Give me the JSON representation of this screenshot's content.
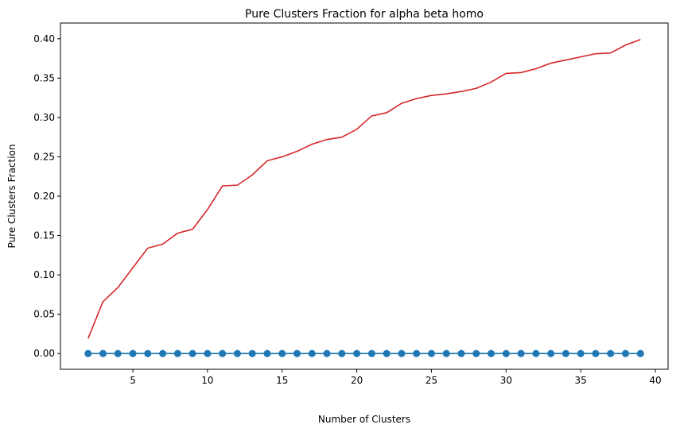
{
  "chart_data": {
    "type": "line",
    "title": "Pure Clusters Fraction for alpha beta homo",
    "xlabel": "Number of Clusters",
    "ylabel": "Pure Clusters Fraction",
    "xlim": [
      0.15,
      40.85
    ],
    "ylim": [
      -0.02,
      0.42
    ],
    "x_ticks": [
      5,
      10,
      15,
      20,
      25,
      30,
      35,
      40
    ],
    "x_tick_labels": [
      "5",
      "10",
      "15",
      "20",
      "25",
      "30",
      "35",
      "40"
    ],
    "y_ticks": [
      0.0,
      0.05,
      0.1,
      0.15,
      0.2,
      0.25,
      0.3,
      0.35,
      0.4
    ],
    "y_tick_labels": [
      "0.00",
      "0.05",
      "0.10",
      "0.15",
      "0.20",
      "0.25",
      "0.30",
      "0.35",
      "0.40"
    ],
    "grid": false,
    "x": [
      2,
      3,
      4,
      5,
      6,
      7,
      8,
      9,
      10,
      11,
      12,
      13,
      14,
      15,
      16,
      17,
      18,
      19,
      20,
      21,
      22,
      23,
      24,
      25,
      26,
      27,
      28,
      29,
      30,
      31,
      32,
      33,
      34,
      35,
      36,
      37,
      38,
      39
    ],
    "series": [
      {
        "color": "#d62728",
        "marker": "none",
        "values": [
          0.019,
          0.066,
          0.084,
          0.109,
          0.134,
          0.139,
          0.153,
          0.158,
          0.183,
          0.213,
          0.214,
          0.227,
          0.245,
          0.25,
          0.257,
          0.266,
          0.272,
          0.275,
          0.285,
          0.302,
          0.306,
          0.318,
          0.324,
          0.328,
          0.33,
          0.333,
          0.337,
          0.345,
          0.356,
          0.357,
          0.362,
          0.369,
          0.373,
          0.377,
          0.381,
          0.382,
          0.392,
          0.399
        ]
      },
      {
        "color": "#2ca02c",
        "marker": "none",
        "values": [
          0,
          0,
          0,
          0,
          0,
          0,
          0,
          0,
          0,
          0,
          0,
          0,
          0,
          0,
          0,
          0,
          0,
          0,
          0,
          0,
          0,
          0,
          0,
          0,
          0,
          0,
          0,
          0,
          0,
          0,
          0,
          0,
          0,
          0,
          0,
          0,
          0,
          0
        ]
      },
      {
        "color": "#1f77b4",
        "marker": "circle",
        "values": [
          0,
          0,
          0,
          0,
          0,
          0,
          0,
          0,
          0,
          0,
          0,
          0,
          0,
          0,
          0,
          0,
          0,
          0,
          0,
          0,
          0,
          0,
          0,
          0,
          0,
          0,
          0,
          0,
          0,
          0,
          0,
          0,
          0,
          0,
          0,
          0,
          0,
          0
        ]
      }
    ]
  }
}
